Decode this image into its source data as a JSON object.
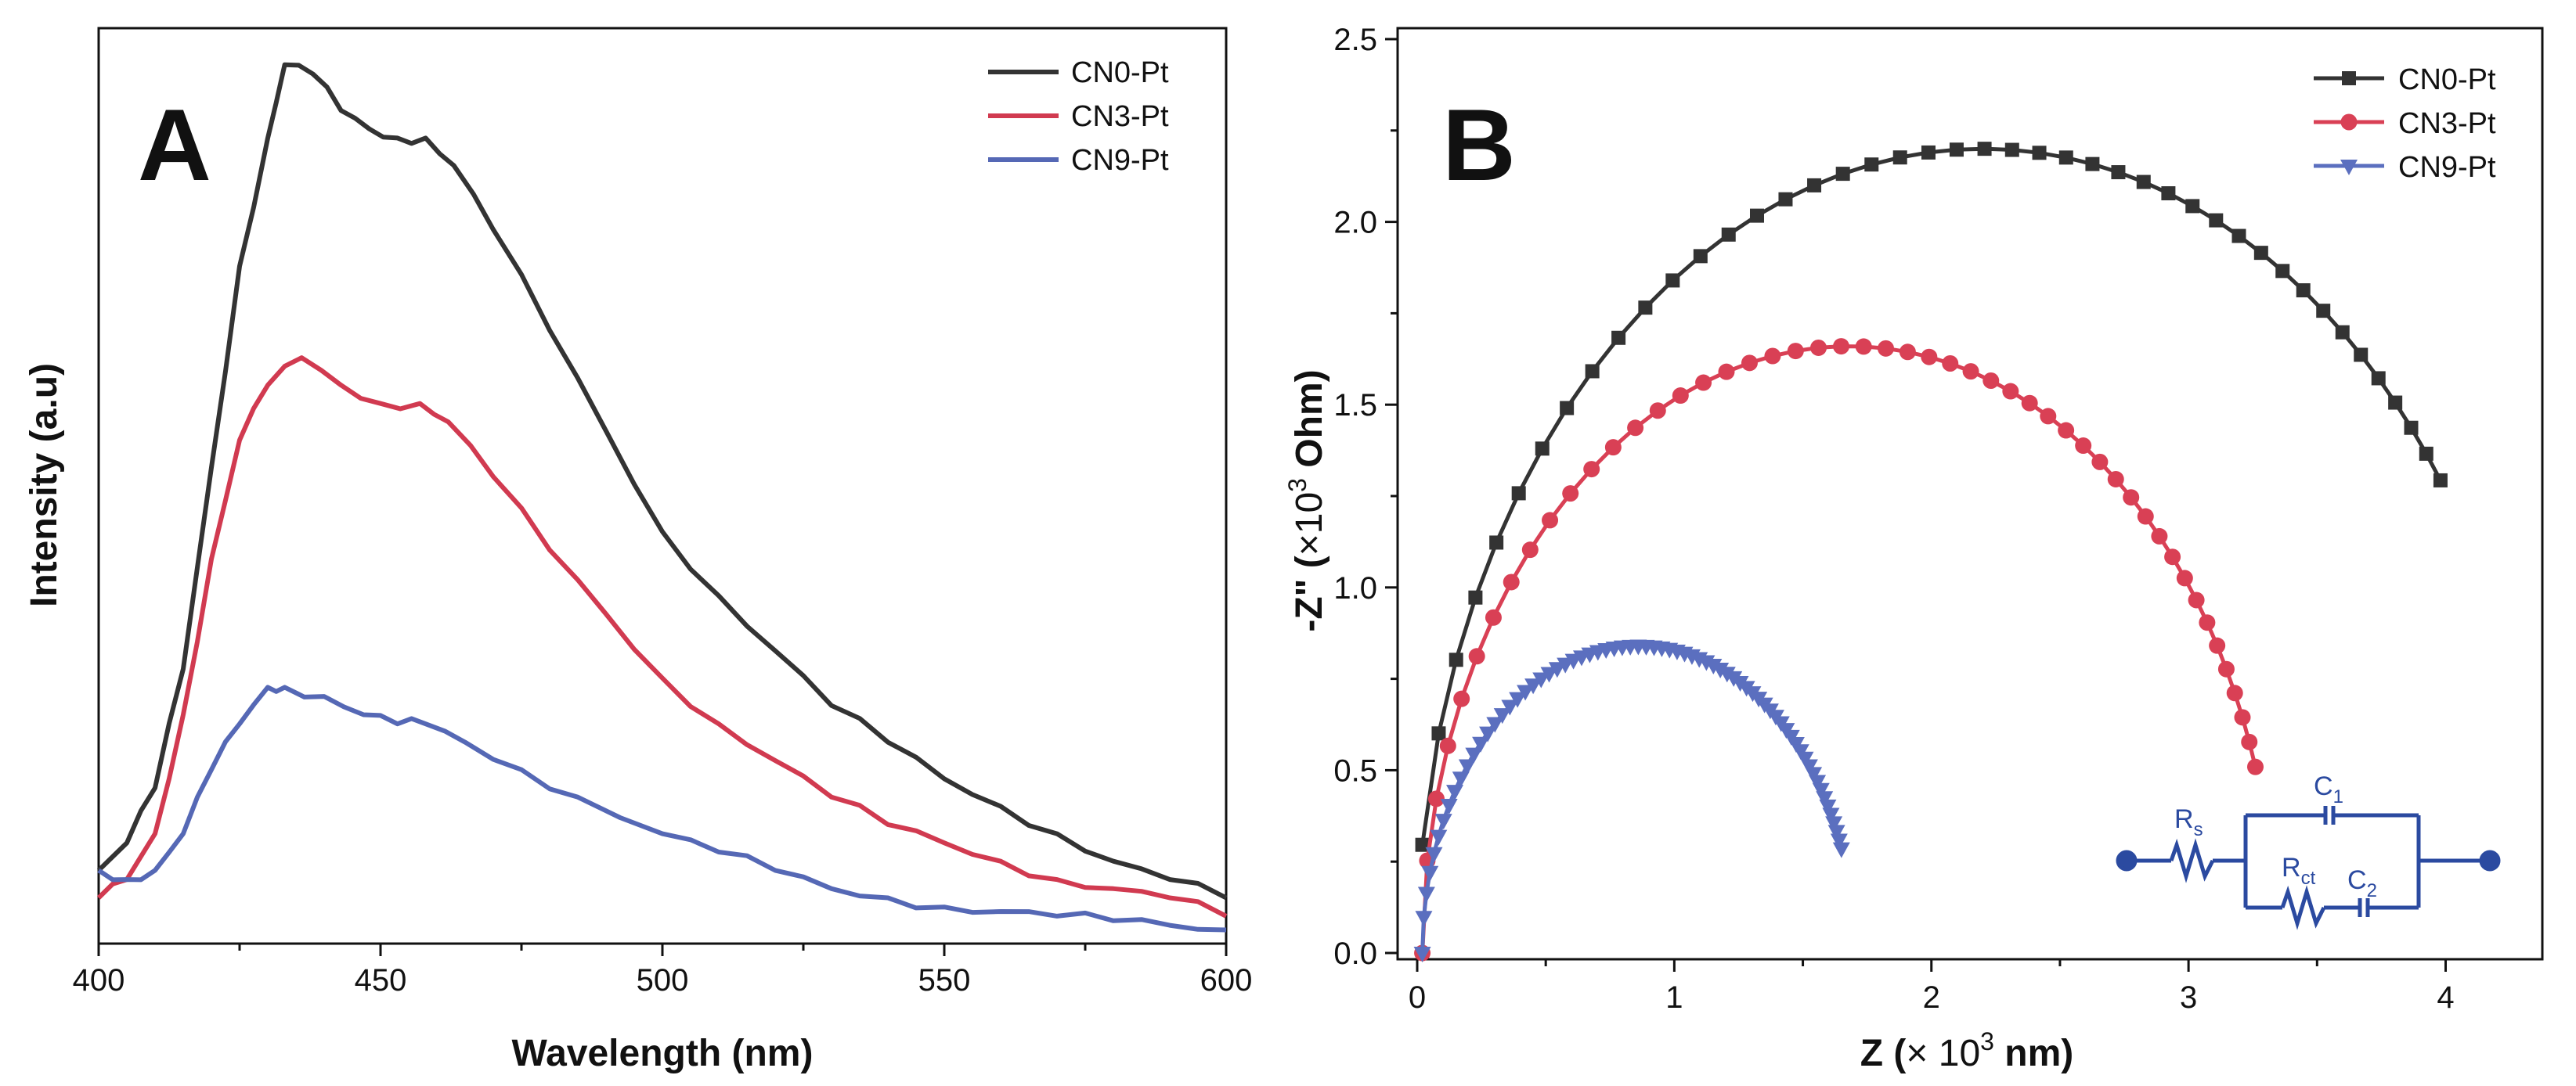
{
  "figure": {
    "panels": [
      {
        "label": "A",
        "chart_data": {
          "type": "line",
          "title": "",
          "xlabel": "Wavelength (nm)",
          "ylabel": "Intensity (a.u)",
          "xlim": [
            400,
            600
          ],
          "ylim": [
            0,
            100
          ],
          "xticks": [
            400,
            450,
            500,
            550,
            600
          ],
          "xtick_labels": [
            "400",
            "450",
            "500",
            "550",
            "600"
          ],
          "y_tick_labels_shown": false,
          "grid": false,
          "legend_position": "top-right",
          "series": [
            {
              "name": "CN0-Pt",
              "color": "#333333",
              "x": [
                400,
                405,
                410,
                415,
                420,
                425,
                430,
                433,
                438,
                443,
                448,
                453,
                458,
                463,
                470,
                480,
                490,
                500,
                510,
                520,
                530,
                540,
                550,
                560,
                570,
                580,
                590,
                600
              ],
              "values": [
                8,
                11,
                17,
                30,
                52,
                74,
                88,
                96,
                95,
                91,
                89,
                88,
                88,
                85,
                78,
                67,
                56,
                45,
                38,
                32,
                26,
                22,
                18,
                15,
                12,
                9,
                7,
                5
              ]
            },
            {
              "name": "CN3-Pt",
              "color": "#d13a50",
              "x": [
                400,
                405,
                410,
                415,
                420,
                425,
                430,
                436,
                443,
                450,
                457,
                462,
                470,
                480,
                490,
                500,
                510,
                520,
                530,
                540,
                550,
                560,
                570,
                580,
                590,
                600
              ],
              "values": [
                5,
                7,
                12,
                25,
                42,
                55,
                61,
                64,
                61,
                59,
                59,
                57,
                51,
                43,
                36,
                29,
                24,
                20,
                16,
                13,
                11,
                9,
                7,
                6,
                5,
                3
              ]
            },
            {
              "name": "CN9-Pt",
              "color": "#5568b5",
              "x": [
                400,
                405,
                410,
                415,
                420,
                425,
                430,
                433,
                440,
                447,
                453,
                458,
                465,
                475,
                485,
                500,
                510,
                520,
                530,
                540,
                550,
                560,
                570,
                580,
                590,
                600
              ],
              "values": [
                8,
                7,
                8,
                12,
                19,
                24,
                28,
                28,
                27,
                25,
                24,
                24,
                22,
                19,
                16,
                12,
                10,
                8,
                6,
                5,
                4,
                3.5,
                3,
                2.5,
                2,
                1.5
              ]
            }
          ]
        }
      },
      {
        "label": "B",
        "chart_data": {
          "type": "scatter",
          "title": "",
          "xlabel_parts": [
            "Z (",
            "× 10",
            "3",
            " nm)"
          ],
          "ylabel_parts": [
            "-Z\" (",
            "×10",
            "3",
            " Ohm)"
          ],
          "xlim": [
            -0.05,
            4.3
          ],
          "ylim": [
            0,
            2.5
          ],
          "xticks": [
            0,
            1,
            2,
            3,
            4
          ],
          "xtick_labels": [
            "0",
            "1",
            "2",
            "3",
            "4"
          ],
          "yticks": [
            0,
            0.5,
            1.0,
            1.5,
            2.0,
            2.5
          ],
          "ytick_labels": [
            "0.0",
            "0.5",
            "1.0",
            "1.5",
            "2.0",
            "2.5"
          ],
          "grid": false,
          "legend_position": "top-right",
          "series": [
            {
              "name": "CN0-Pt",
              "marker": "square",
              "color": "#333333",
              "note": "semicircular arc, center 2.2, radius 2.2, from 0 to 3.98",
              "arc": {
                "center": 2.2,
                "radius": 2.2,
                "x_end": 3.98,
                "n_points": 44,
                "dense_near_origin": true
              },
              "end_point": [
                3.98,
                1.28
              ]
            },
            {
              "name": "CN3-Pt",
              "marker": "circle",
              "color": "#d94055",
              "arc": {
                "center": 1.68,
                "radius": 1.66,
                "x_end": 3.26,
                "n_points": 50,
                "dense_near_origin": true
              },
              "end_point": [
                3.26,
                0.52
              ]
            },
            {
              "name": "CN9-Pt",
              "marker": "triangle-down",
              "color": "#5b6fbf",
              "arc": {
                "center": 0.86,
                "radius": 0.84,
                "x_end": 1.65,
                "n_points": 70,
                "dense_near_origin": true
              },
              "end_point": [
                1.65,
                0.2
              ]
            }
          ],
          "inset_circuit": {
            "labels": [
              {
                "main": "R",
                "sub": "s"
              },
              {
                "main": "C",
                "sub": "1"
              },
              {
                "main": "R",
                "sub": "ct"
              },
              {
                "main": "C",
                "sub": "2"
              }
            ],
            "color": "#2b4aa0"
          }
        }
      }
    ]
  }
}
